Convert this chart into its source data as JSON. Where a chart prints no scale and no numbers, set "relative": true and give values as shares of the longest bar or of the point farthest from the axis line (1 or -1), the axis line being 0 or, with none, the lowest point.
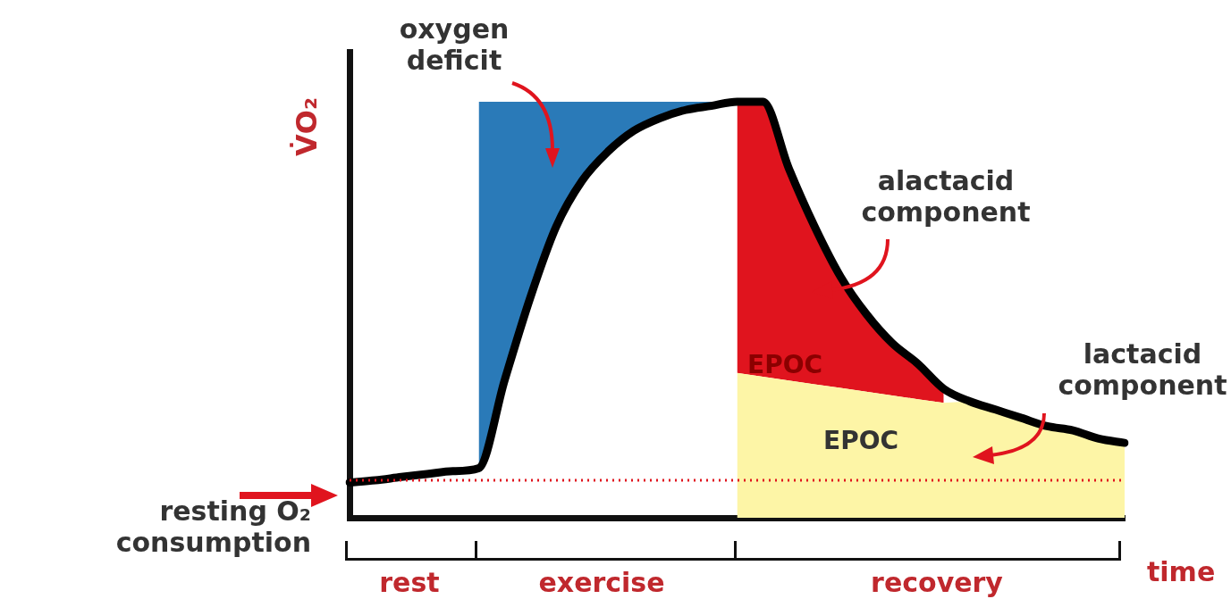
{
  "chart_data": {
    "type": "line",
    "relative": true,
    "xlabel": "time",
    "ylabel": "V̇O₂",
    "legend": false,
    "grid": false,
    "marker": "none",
    "categories": [
      null,
      null,
      null,
      null,
      null,
      null,
      null,
      null,
      null,
      null,
      null,
      null,
      null,
      null,
      null,
      null,
      null,
      null,
      null,
      null,
      null,
      null,
      null,
      null,
      null,
      null,
      null,
      null,
      null,
      null,
      null
    ],
    "series": [
      {
        "type": "area",
        "color": "#fdf5a6",
        "values": [
          null,
          null,
          null,
          null,
          null,
          null,
          null,
          null,
          null,
          null,
          null,
          null,
          null,
          null,
          null,
          0.348,
          0.339,
          0.33,
          0.321,
          0.312,
          0.303,
          0.294,
          0.285,
          0.276,
          0.28,
          0.26,
          0.24,
          0.22,
          0.21,
          0.19,
          0.18
        ]
      },
      {
        "type": "area",
        "color": "#e0141e",
        "values": [
          null,
          null,
          null,
          null,
          null,
          null,
          null,
          null,
          null,
          null,
          null,
          null,
          null,
          null,
          null,
          1,
          1,
          0.84,
          0.7,
          0.58,
          0.49,
          0.42,
          0.37,
          0.31,
          null,
          null,
          null,
          null,
          null,
          null,
          null
        ]
      },
      {
        "type": "line",
        "color": "#000000",
        "values": [
          0.085,
          0.09,
          0.098,
          0.105,
          0.112,
          0.119,
          0.33,
          0.53,
          0.7,
          0.81,
          0.88,
          0.93,
          0.96,
          0.98,
          0.99,
          1,
          1,
          0.84,
          0.7,
          0.58,
          0.49,
          0.42,
          0.37,
          0.31,
          0.28,
          0.26,
          0.24,
          0.22,
          0.21,
          0.19,
          0.18
        ]
      },
      {
        "type": "area",
        "color": "#2a7ab8",
        "values": [
          null,
          null,
          null,
          null,
          null,
          1,
          1,
          1,
          1,
          1,
          1,
          1,
          1,
          1,
          1,
          1,
          null,
          null,
          null,
          null,
          null,
          null,
          null,
          null,
          null,
          null,
          null,
          null,
          null,
          null,
          null
        ]
      }
    ],
    "ref_lines": [
      {
        "axis": "y",
        "value": 0.09,
        "color": "#e0141e",
        "line_style": "dotted"
      }
    ],
    "annotations": [
      "oxygen deficit",
      "alactacid component",
      "lactacid component",
      "EPOC",
      "EPOC",
      "resting O₂ consumption",
      "rest",
      "exercise",
      "recovery"
    ]
  }
}
